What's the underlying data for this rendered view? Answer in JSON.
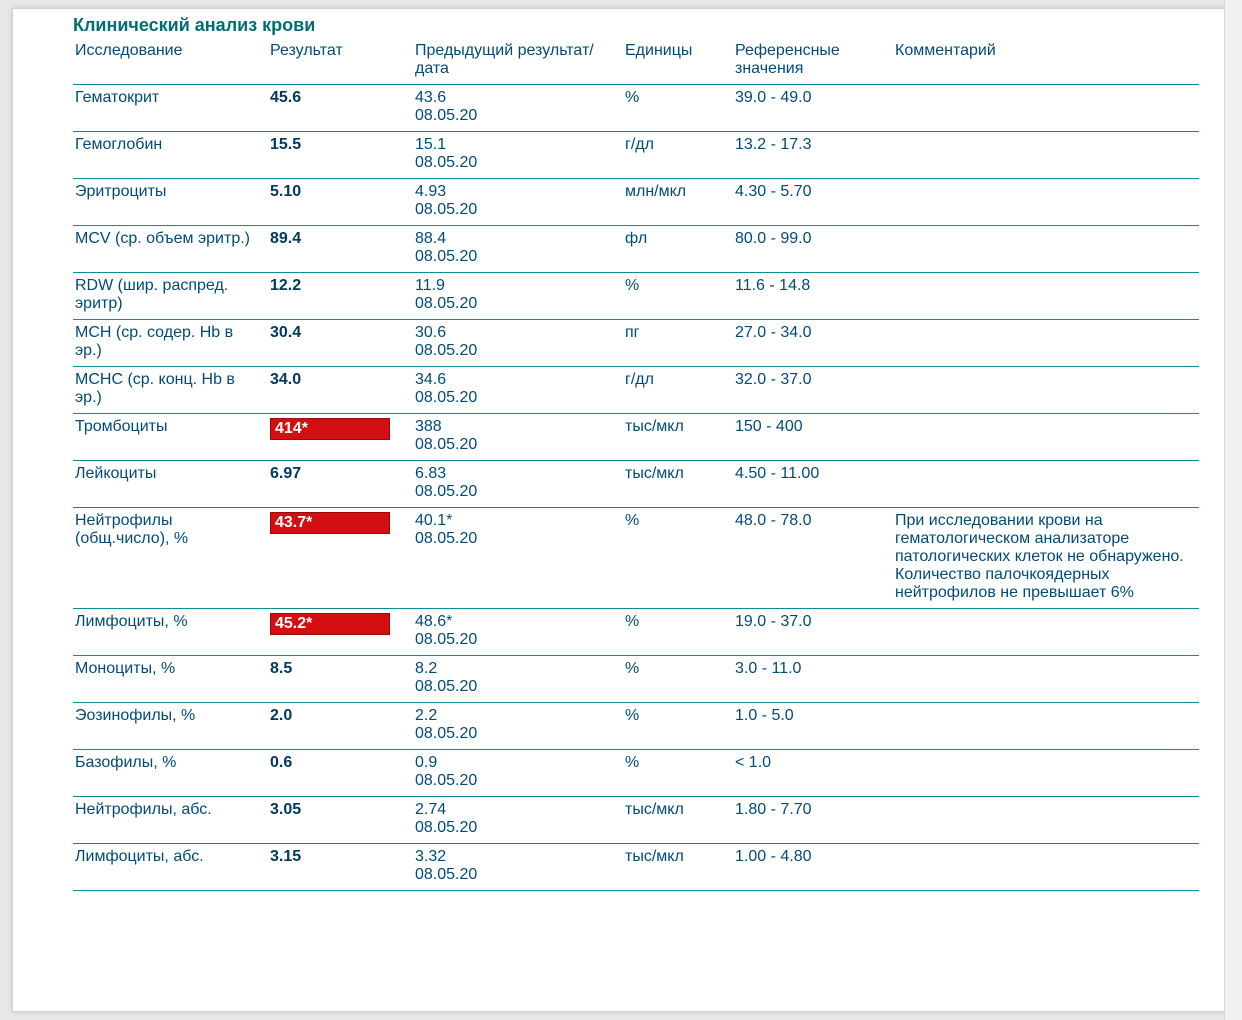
{
  "colors": {
    "teal": "#006e74",
    "row_border": "#0a8f97",
    "text_blue": "#004b7a",
    "flag_bg": "#d40f12",
    "flag_border": "#9c0a0c",
    "page_bg": "#ffffff",
    "viewport_bg": "#e8e8e8"
  },
  "section_title": "Клинический анализ крови",
  "columns": {
    "name": "Исследование",
    "result": "Результат",
    "prev": "Предыдущий результат/дата",
    "units": "Единицы",
    "ref": "Референсные значения",
    "comment": "Комментарий"
  },
  "rows": [
    {
      "name": "Гематокрит",
      "result": "45.6",
      "flag": false,
      "prev_value": "43.6",
      "prev_date": "08.05.20",
      "units": "%",
      "ref": "39.0 - 49.0",
      "comment": ""
    },
    {
      "name": "Гемоглобин",
      "result": "15.5",
      "flag": false,
      "prev_value": "15.1",
      "prev_date": "08.05.20",
      "units": "г/дл",
      "ref": "13.2 - 17.3",
      "comment": ""
    },
    {
      "name": "Эритроциты",
      "result": "5.10",
      "flag": false,
      "prev_value": "4.93",
      "prev_date": "08.05.20",
      "units": "млн/мкл",
      "ref": "4.30 - 5.70",
      "comment": ""
    },
    {
      "name": "MCV (ср. объем эритр.)",
      "result": "89.4",
      "flag": false,
      "prev_value": "88.4",
      "prev_date": "08.05.20",
      "units": "фл",
      "ref": "80.0 - 99.0",
      "comment": ""
    },
    {
      "name": "RDW (шир. распред. эритр)",
      "result": "12.2",
      "flag": false,
      "prev_value": "11.9",
      "prev_date": "08.05.20",
      "units": "%",
      "ref": "11.6 - 14.8",
      "comment": ""
    },
    {
      "name": "MCH (ср. содер. Hb в эр.)",
      "result": "30.4",
      "flag": false,
      "prev_value": "30.6",
      "prev_date": "08.05.20",
      "units": "пг",
      "ref": "27.0 - 34.0",
      "comment": ""
    },
    {
      "name": "MCHC (ср. конц. Hb в эр.)",
      "result": "34.0",
      "flag": false,
      "prev_value": "34.6",
      "prev_date": "08.05.20",
      "units": "г/дл",
      "ref": "32.0 - 37.0",
      "comment": ""
    },
    {
      "name": "Тромбоциты",
      "result": "414*",
      "flag": true,
      "prev_value": "388",
      "prev_date": "08.05.20",
      "units": "тыс/мкл",
      "ref": "150 - 400",
      "comment": ""
    },
    {
      "name": "Лейкоциты",
      "result": "6.97",
      "flag": false,
      "prev_value": "6.83",
      "prev_date": "08.05.20",
      "units": "тыс/мкл",
      "ref": "4.50 - 11.00",
      "comment": ""
    },
    {
      "name": "Нейтрофилы (общ.число), %",
      "result": "43.7*",
      "flag": true,
      "prev_value": "40.1*",
      "prev_date": "08.05.20",
      "units": "%",
      "ref": "48.0 - 78.0",
      "comment": "При исследовании крови на гематологическом анализаторе патологических клеток не обнаружено. Количество палочкоядерных нейтрофилов не превышает 6%"
    },
    {
      "name": "Лимфоциты, %",
      "result": "45.2*",
      "flag": true,
      "prev_value": "48.6*",
      "prev_date": "08.05.20",
      "units": "%",
      "ref": "19.0 - 37.0",
      "comment": ""
    },
    {
      "name": "Моноциты, %",
      "result": "8.5",
      "flag": false,
      "prev_value": "8.2",
      "prev_date": "08.05.20",
      "units": "%",
      "ref": "3.0 - 11.0",
      "comment": ""
    },
    {
      "name": "Эозинофилы, %",
      "result": "2.0",
      "flag": false,
      "prev_value": "2.2",
      "prev_date": "08.05.20",
      "units": "%",
      "ref": "1.0 - 5.0",
      "comment": ""
    },
    {
      "name": "Базофилы, %",
      "result": "0.6",
      "flag": false,
      "prev_value": "0.9",
      "prev_date": "08.05.20",
      "units": "%",
      "ref": "< 1.0",
      "comment": ""
    },
    {
      "name": "Нейтрофилы, абс.",
      "result": "3.05",
      "flag": false,
      "prev_value": "2.74",
      "prev_date": "08.05.20",
      "units": "тыс/мкл",
      "ref": "1.80 - 7.70",
      "comment": ""
    },
    {
      "name": "Лимфоциты, абс.",
      "result": "3.15",
      "flag": false,
      "prev_value": "3.32",
      "prev_date": "08.05.20",
      "units": "тыс/мкл",
      "ref": "1.00 - 4.80",
      "comment": ""
    }
  ]
}
